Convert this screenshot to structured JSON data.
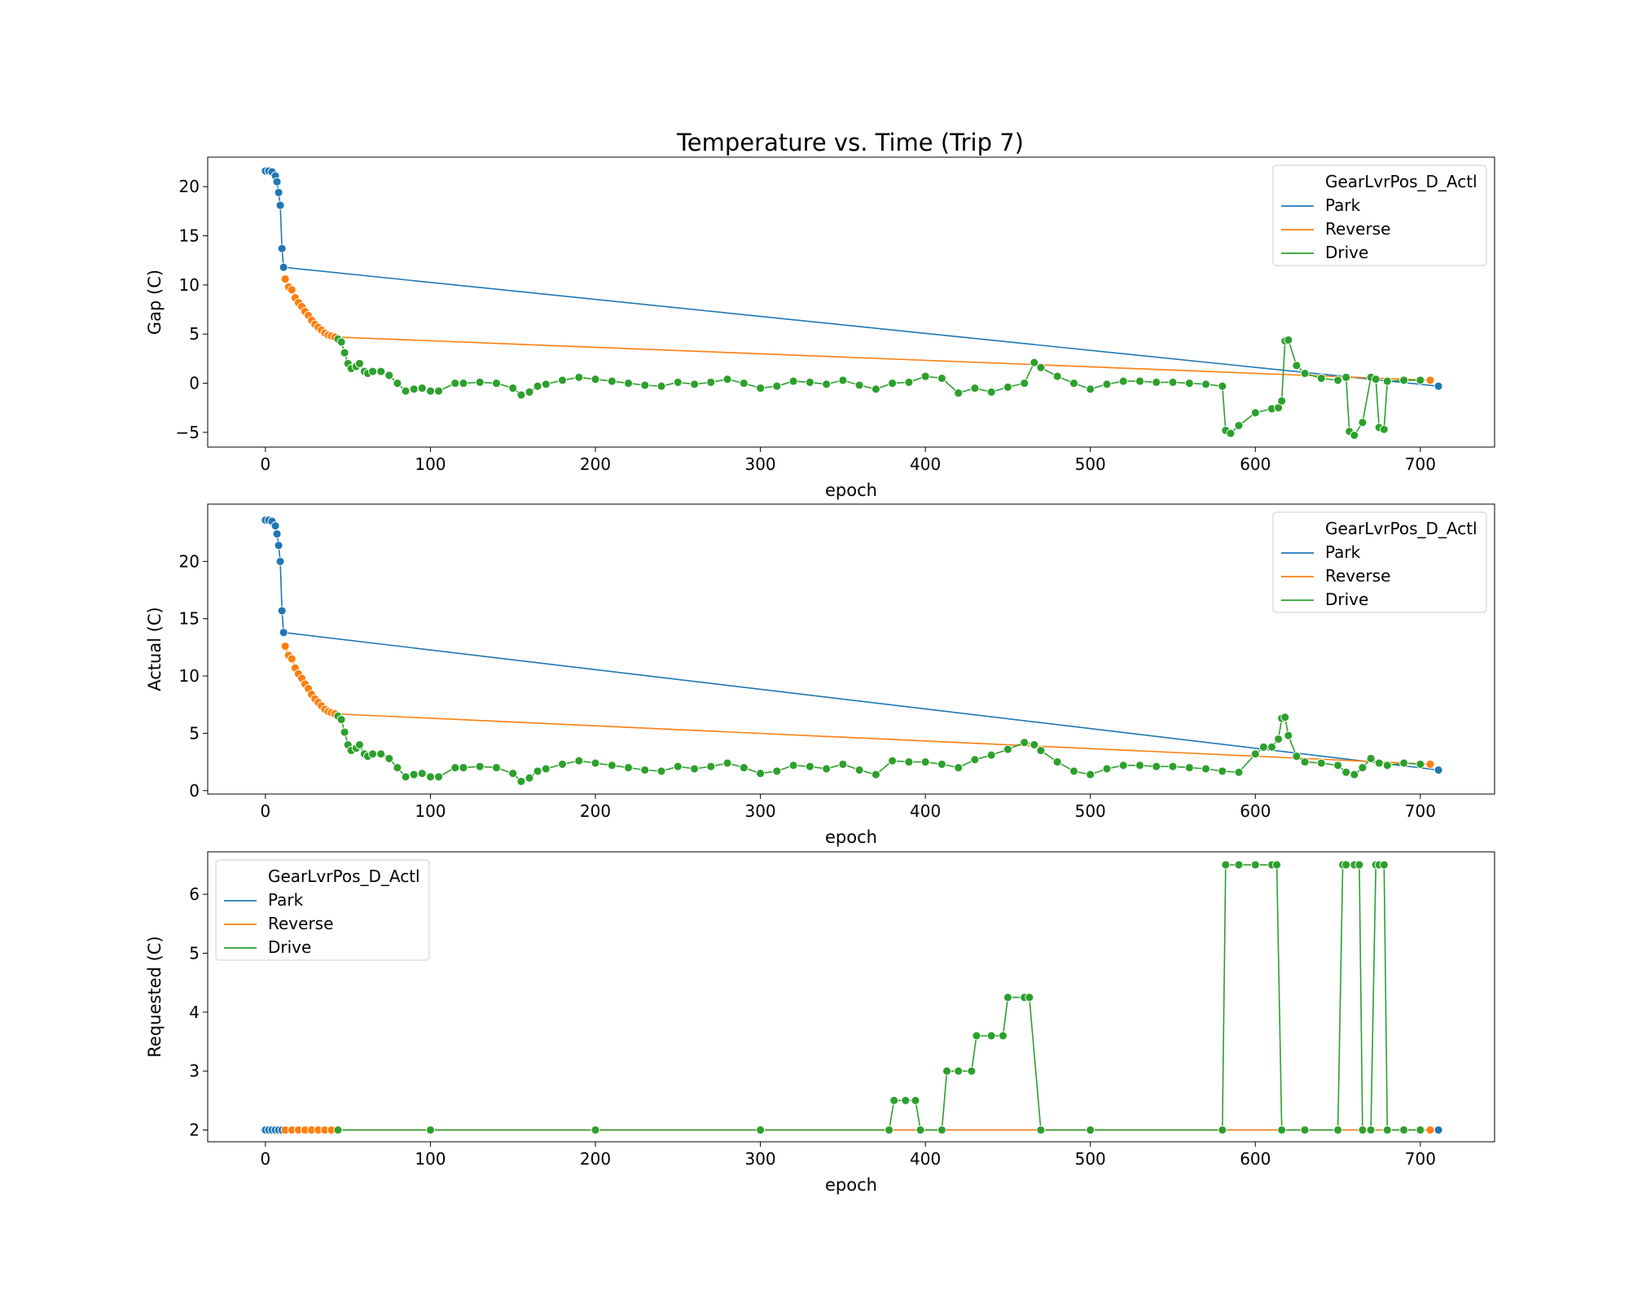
{
  "title": "Temperature vs. Time (Trip 7)",
  "legend_title": "GearLvrPos_D_Actl",
  "colors": {
    "Park": "#1f77b4",
    "Reverse": "#ff7f0e",
    "Drive": "#2ca02c"
  },
  "chart_data": [
    {
      "type": "line",
      "title": "Temperature vs. Time (Trip 7)",
      "xlabel": "epoch",
      "ylabel": "Gap (C)",
      "xlim": [
        -35,
        745
      ],
      "ylim": [
        -6.5,
        23
      ],
      "xticks": [
        0,
        100,
        200,
        300,
        400,
        500,
        600,
        700
      ],
      "yticks": [
        -5,
        0,
        5,
        10,
        15,
        20
      ],
      "legend_title": "GearLvrPos_D_Actl",
      "legend_position": "top-right",
      "markers": true,
      "grid": false,
      "series": [
        {
          "name": "Park",
          "color": "#1f77b4",
          "x": [
            0,
            2,
            4,
            6,
            7,
            8,
            9,
            10,
            11,
            711
          ],
          "y": [
            21.6,
            21.6,
            21.5,
            21.1,
            20.5,
            19.4,
            18.1,
            13.7,
            11.8,
            -0.3
          ]
        },
        {
          "name": "Reverse",
          "color": "#ff7f0e",
          "x": [
            12,
            14,
            16,
            18,
            20,
            22,
            24,
            26,
            28,
            30,
            32,
            34,
            36,
            38,
            40,
            42,
            706
          ],
          "y": [
            10.6,
            9.8,
            9.5,
            8.7,
            8.2,
            7.8,
            7.3,
            6.9,
            6.4,
            6.0,
            5.7,
            5.4,
            5.1,
            4.9,
            4.8,
            4.7,
            0.3
          ]
        },
        {
          "name": "Drive",
          "color": "#2ca02c",
          "x": [
            44,
            46,
            48,
            50,
            52,
            55,
            57,
            60,
            62,
            65,
            70,
            75,
            80,
            85,
            90,
            95,
            100,
            105,
            115,
            120,
            130,
            140,
            150,
            155,
            160,
            165,
            170,
            180,
            190,
            200,
            210,
            220,
            230,
            240,
            250,
            260,
            270,
            280,
            290,
            300,
            310,
            320,
            330,
            340,
            350,
            360,
            370,
            380,
            390,
            400,
            410,
            420,
            430,
            440,
            450,
            460,
            466,
            470,
            480,
            490,
            500,
            510,
            520,
            530,
            540,
            550,
            560,
            570,
            580,
            582,
            585,
            590,
            600,
            610,
            614,
            616,
            618,
            620,
            625,
            630,
            640,
            650,
            655,
            657,
            660,
            665,
            670,
            673,
            675,
            678,
            680,
            690,
            700
          ],
          "y": [
            4.5,
            4.2,
            3.1,
            2.0,
            1.5,
            1.7,
            2.0,
            1.2,
            1.0,
            1.2,
            1.2,
            0.8,
            0.0,
            -0.8,
            -0.6,
            -0.5,
            -0.8,
            -0.8,
            0.0,
            0.0,
            0.1,
            0.0,
            -0.5,
            -1.2,
            -0.9,
            -0.3,
            -0.1,
            0.3,
            0.6,
            0.4,
            0.2,
            0.0,
            -0.2,
            -0.3,
            0.1,
            -0.1,
            0.1,
            0.4,
            0.0,
            -0.5,
            -0.3,
            0.2,
            0.1,
            -0.1,
            0.3,
            -0.2,
            -0.6,
            0.0,
            0.1,
            0.7,
            0.5,
            -1.0,
            -0.5,
            -0.9,
            -0.4,
            0.0,
            2.1,
            1.6,
            0.7,
            0.0,
            -0.6,
            -0.1,
            0.2,
            0.2,
            0.1,
            0.1,
            0.0,
            -0.1,
            -0.3,
            -4.8,
            -5.1,
            -4.3,
            -3.0,
            -2.6,
            -2.5,
            -1.8,
            4.3,
            4.4,
            1.8,
            1.0,
            0.5,
            0.3,
            0.6,
            -4.9,
            -5.3,
            -4.0,
            0.6,
            0.4,
            -4.5,
            -4.7,
            0.2,
            0.3,
            0.3
          ]
        }
      ]
    },
    {
      "type": "line",
      "xlabel": "epoch",
      "ylabel": "Actual (C)",
      "xlim": [
        -35,
        745
      ],
      "ylim": [
        -0.3,
        25
      ],
      "xticks": [
        0,
        100,
        200,
        300,
        400,
        500,
        600,
        700
      ],
      "yticks": [
        0,
        5,
        10,
        15,
        20
      ],
      "legend_title": "GearLvrPos_D_Actl",
      "legend_position": "top-right",
      "markers": true,
      "grid": false,
      "series": [
        {
          "name": "Park",
          "color": "#1f77b4",
          "x": [
            0,
            2,
            4,
            6,
            7,
            8,
            9,
            10,
            11,
            711
          ],
          "y": [
            23.6,
            23.6,
            23.5,
            23.1,
            22.4,
            21.4,
            20.0,
            15.7,
            13.8,
            1.8
          ]
        },
        {
          "name": "Reverse",
          "color": "#ff7f0e",
          "x": [
            12,
            14,
            16,
            18,
            20,
            22,
            24,
            26,
            28,
            30,
            32,
            34,
            36,
            38,
            40,
            42,
            706
          ],
          "y": [
            12.6,
            11.8,
            11.5,
            10.7,
            10.2,
            9.8,
            9.3,
            8.9,
            8.4,
            8.0,
            7.7,
            7.4,
            7.1,
            6.9,
            6.8,
            6.7,
            2.3
          ]
        },
        {
          "name": "Drive",
          "color": "#2ca02c",
          "x": [
            44,
            46,
            48,
            50,
            52,
            55,
            57,
            60,
            62,
            65,
            70,
            75,
            80,
            85,
            90,
            95,
            100,
            105,
            115,
            120,
            130,
            140,
            150,
            155,
            160,
            165,
            170,
            180,
            190,
            200,
            210,
            220,
            230,
            240,
            250,
            260,
            270,
            280,
            290,
            300,
            310,
            320,
            330,
            340,
            350,
            360,
            370,
            380,
            390,
            400,
            410,
            420,
            430,
            440,
            450,
            460,
            466,
            470,
            480,
            490,
            500,
            510,
            520,
            530,
            540,
            550,
            560,
            570,
            580,
            590,
            600,
            605,
            610,
            614,
            616,
            618,
            620,
            625,
            630,
            640,
            650,
            655,
            660,
            665,
            670,
            675,
            680,
            690,
            700
          ],
          "y": [
            6.5,
            6.2,
            5.1,
            4.0,
            3.5,
            3.7,
            4.0,
            3.2,
            3.0,
            3.2,
            3.2,
            2.8,
            2.0,
            1.2,
            1.4,
            1.5,
            1.2,
            1.2,
            2.0,
            2.0,
            2.1,
            2.0,
            1.5,
            0.8,
            1.1,
            1.7,
            1.9,
            2.3,
            2.6,
            2.4,
            2.2,
            2.0,
            1.8,
            1.7,
            2.1,
            1.9,
            2.1,
            2.4,
            2.0,
            1.5,
            1.7,
            2.2,
            2.1,
            1.9,
            2.3,
            1.8,
            1.4,
            2.6,
            2.5,
            2.5,
            2.3,
            2.0,
            2.7,
            3.1,
            3.6,
            4.2,
            4.0,
            3.5,
            2.5,
            1.7,
            1.4,
            1.9,
            2.2,
            2.2,
            2.1,
            2.1,
            2.0,
            1.9,
            1.7,
            1.6,
            3.2,
            3.8,
            3.8,
            4.5,
            6.3,
            6.4,
            4.8,
            3.0,
            2.5,
            2.4,
            2.2,
            1.6,
            1.4,
            2.0,
            2.8,
            2.4,
            2.2,
            2.4,
            2.3
          ]
        }
      ]
    },
    {
      "type": "line",
      "xlabel": "epoch",
      "ylabel": "Requested (C)",
      "xlim": [
        -35,
        745
      ],
      "ylim": [
        1.8,
        6.72
      ],
      "xticks": [
        0,
        100,
        200,
        300,
        400,
        500,
        600,
        700
      ],
      "yticks": [
        2,
        3,
        4,
        5,
        6
      ],
      "legend_title": "GearLvrPos_D_Actl",
      "legend_position": "top-left",
      "markers": true,
      "grid": false,
      "series": [
        {
          "name": "Park",
          "color": "#1f77b4",
          "x": [
            0,
            2,
            4,
            6,
            8,
            10,
            711
          ],
          "y": [
            2,
            2,
            2,
            2,
            2,
            2,
            2
          ]
        },
        {
          "name": "Reverse",
          "color": "#ff7f0e",
          "x": [
            12,
            16,
            20,
            24,
            28,
            32,
            36,
            40,
            706
          ],
          "y": [
            2,
            2,
            2,
            2,
            2,
            2,
            2,
            2,
            2
          ]
        },
        {
          "name": "Drive",
          "color": "#2ca02c",
          "x": [
            44,
            100,
            200,
            300,
            378,
            381,
            388,
            394,
            397,
            410,
            413,
            420,
            428,
            431,
            440,
            447,
            450,
            460,
            463,
            470,
            500,
            580,
            582,
            590,
            600,
            610,
            613,
            616,
            630,
            650,
            653,
            655,
            660,
            663,
            665,
            670,
            673,
            675,
            678,
            680,
            690,
            700
          ],
          "y": [
            2,
            2,
            2,
            2,
            2,
            2.5,
            2.5,
            2.5,
            2,
            2,
            3,
            3,
            3,
            3.6,
            3.6,
            3.6,
            4.25,
            4.25,
            4.25,
            2,
            2,
            2,
            6.5,
            6.5,
            6.5,
            6.5,
            6.5,
            2,
            2,
            2,
            6.5,
            6.5,
            6.5,
            6.5,
            2,
            2,
            6.5,
            6.5,
            6.5,
            2,
            2,
            2
          ]
        }
      ]
    }
  ]
}
